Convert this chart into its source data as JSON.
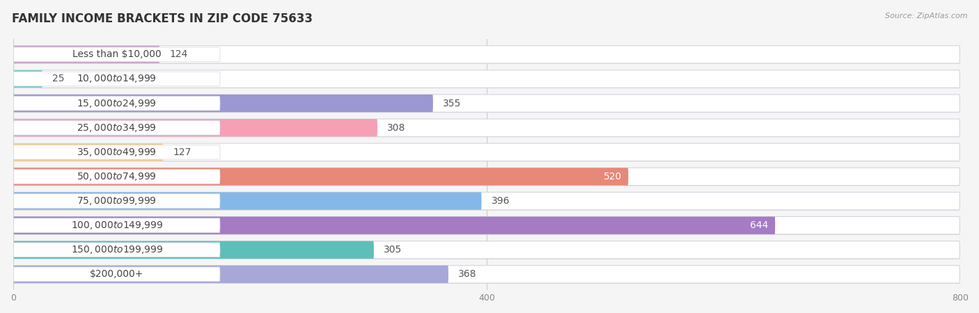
{
  "title": "FAMILY INCOME BRACKETS IN ZIP CODE 75633",
  "source": "Source: ZipAtlas.com",
  "categories": [
    "Less than $10,000",
    "$10,000 to $14,999",
    "$15,000 to $24,999",
    "$25,000 to $34,999",
    "$35,000 to $49,999",
    "$50,000 to $74,999",
    "$75,000 to $99,999",
    "$100,000 to $149,999",
    "$150,000 to $199,999",
    "$200,000+"
  ],
  "values": [
    124,
    25,
    355,
    308,
    127,
    520,
    396,
    644,
    305,
    368
  ],
  "bar_colors": [
    "#c9a8c8",
    "#7ecfca",
    "#9b97d3",
    "#f5a0b5",
    "#f9c98a",
    "#e88878",
    "#85b8e8",
    "#a57bc4",
    "#5dbfb8",
    "#a8a8d8"
  ],
  "label_colors": [
    "#555555",
    "#555555",
    "#555555",
    "#555555",
    "#555555",
    "white",
    "#555555",
    "white",
    "#555555",
    "#555555"
  ],
  "xlim": [
    0,
    800
  ],
  "xticks": [
    0,
    400,
    800
  ],
  "background_color": "#f5f5f5",
  "bar_bg_color": "#e8e8ec",
  "bar_border_color": "#d5d5e0",
  "title_fontsize": 12,
  "label_fontsize": 10,
  "value_fontsize": 10,
  "bar_height": 0.72
}
